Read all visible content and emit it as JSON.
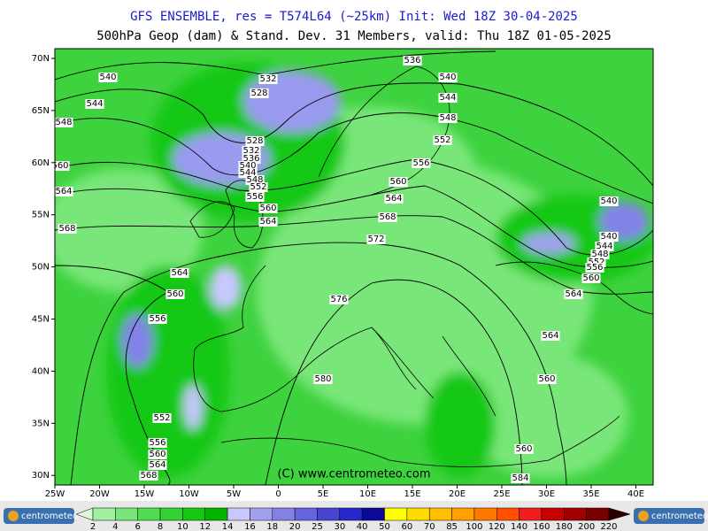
{
  "header": {
    "title": "GFS ENSEMBLE, res = T574L64 (~25km)   Init: Wed 18Z 30-04-2025",
    "subtitle": "500hPa Geop (dam) & Stand. Dev.   31 Members, valid: Thu 18Z 01-05-2025"
  },
  "lat_labels": [
    "70N",
    "65N",
    "60N",
    "55N",
    "50N",
    "45N",
    "40N",
    "35N",
    "30N"
  ],
  "lon_labels": [
    "25W",
    "20W",
    "15W",
    "10W",
    "5W",
    "0",
    "5E",
    "10E",
    "15E",
    "20E",
    "25E",
    "30E",
    "35E",
    "40E"
  ],
  "contour_labels": [
    "540",
    "544",
    "548",
    "560",
    "564",
    "568",
    "532",
    "528",
    "528",
    "532",
    "536",
    "540",
    "544",
    "548",
    "552",
    "556",
    "560",
    "564",
    "536",
    "540",
    "544",
    "548",
    "552",
    "556",
    "560",
    "564",
    "568",
    "572",
    "576",
    "580",
    "564",
    "560",
    "556",
    "552",
    "556",
    "560",
    "564",
    "568",
    "540",
    "540",
    "544",
    "548",
    "552",
    "556",
    "560",
    "564",
    "564",
    "560",
    "560",
    "584"
  ],
  "copyright": "(C) www.centrometeo.com",
  "logo": "centrometeo",
  "colorbar": [
    2,
    4,
    6,
    8,
    10,
    12,
    14,
    16,
    18,
    20,
    25,
    30,
    40,
    50,
    60,
    70,
    85,
    100,
    120,
    140,
    160,
    180,
    200,
    220
  ]
}
